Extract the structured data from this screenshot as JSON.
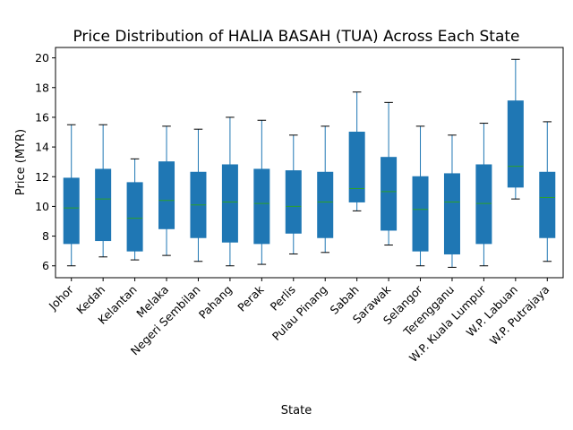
{
  "chart_data": {
    "type": "box",
    "title": "Price Distribution of HALIA BASAH (TUA) Across Each State",
    "xlabel": "State",
    "ylabel": "Price (MYR)",
    "ylim": [
      5.2,
      20.7
    ],
    "yticks": [
      6,
      8,
      10,
      12,
      14,
      16,
      18,
      20
    ],
    "grid": false,
    "colors": {
      "box": "#1f77b4",
      "median": "#2ca02c",
      "whisker": "#1f77b4",
      "cap": "#000000"
    },
    "categories": [
      "Johor",
      "Kedah",
      "Kelantan",
      "Melaka",
      "Negeri Sembilan",
      "Pahang",
      "Perak",
      "Perlis",
      "Pulau Pinang",
      "Sabah",
      "Sarawak",
      "Selangor",
      "Terengganu",
      "W.P. Kuala Lumpur",
      "W.P. Labuan",
      "W.P. Putrajaya"
    ],
    "boxes": [
      {
        "min": 6.0,
        "q1": 7.5,
        "median": 9.9,
        "q3": 11.9,
        "max": 15.5
      },
      {
        "min": 6.6,
        "q1": 7.7,
        "median": 10.5,
        "q3": 12.5,
        "max": 15.5
      },
      {
        "min": 6.4,
        "q1": 7.0,
        "median": 9.2,
        "q3": 11.6,
        "max": 13.2
      },
      {
        "min": 6.7,
        "q1": 8.5,
        "median": 10.4,
        "q3": 13.0,
        "max": 15.4
      },
      {
        "min": 6.3,
        "q1": 7.9,
        "median": 10.1,
        "q3": 12.3,
        "max": 15.2
      },
      {
        "min": 6.0,
        "q1": 7.6,
        "median": 10.3,
        "q3": 12.8,
        "max": 16.0
      },
      {
        "min": 6.1,
        "q1": 7.5,
        "median": 10.2,
        "q3": 12.5,
        "max": 15.8
      },
      {
        "min": 6.8,
        "q1": 8.2,
        "median": 10.0,
        "q3": 12.4,
        "max": 14.8
      },
      {
        "min": 6.9,
        "q1": 7.9,
        "median": 10.3,
        "q3": 12.3,
        "max": 15.4
      },
      {
        "min": 9.7,
        "q1": 10.3,
        "median": 11.2,
        "q3": 15.0,
        "max": 17.7
      },
      {
        "min": 7.4,
        "q1": 8.4,
        "median": 11.0,
        "q3": 13.3,
        "max": 17.0
      },
      {
        "min": 6.0,
        "q1": 7.0,
        "median": 9.8,
        "q3": 12.0,
        "max": 15.4
      },
      {
        "min": 5.9,
        "q1": 6.8,
        "median": 10.3,
        "q3": 12.2,
        "max": 14.8
      },
      {
        "min": 6.0,
        "q1": 7.5,
        "median": 10.2,
        "q3": 12.8,
        "max": 15.6
      },
      {
        "min": 10.5,
        "q1": 11.3,
        "median": 12.7,
        "q3": 17.1,
        "max": 19.9
      },
      {
        "min": 6.3,
        "q1": 7.9,
        "median": 10.6,
        "q3": 12.3,
        "max": 15.7
      }
    ]
  }
}
